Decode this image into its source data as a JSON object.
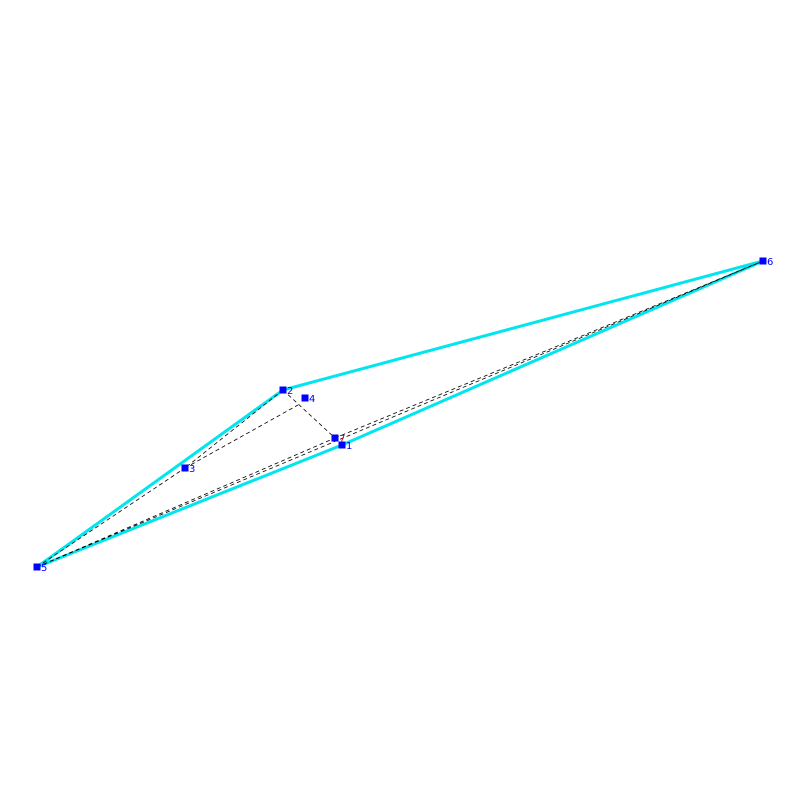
{
  "nodes": [
    {
      "label": "1"
    },
    {
      "label": "2"
    },
    {
      "label": "3"
    },
    {
      "label": "4"
    },
    {
      "label": "5"
    },
    {
      "label": "6"
    },
    {
      "label": "7"
    }
  ]
}
